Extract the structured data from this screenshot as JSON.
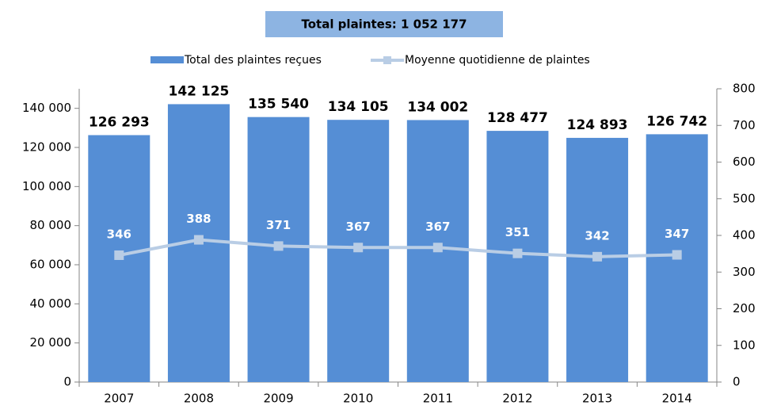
{
  "chart_data": {
    "type": "bar+line",
    "title": "Total plaintes:  1 052 177",
    "categories": [
      "2007",
      "2008",
      "2009",
      "2010",
      "2011",
      "2012",
      "2013",
      "2014"
    ],
    "series": [
      {
        "name": "Total des plaintes reçues",
        "type": "bar",
        "color": "#558ed5",
        "values": [
          126293,
          142125,
          135540,
          134105,
          134002,
          128477,
          124893,
          126742
        ],
        "value_labels": [
          "126 293",
          "142 125",
          "135 540",
          "134 105",
          "134 002",
          "128 477",
          "124 893",
          "126 742"
        ]
      },
      {
        "name": "Moyenne quotidienne de plaintes",
        "type": "line",
        "axis": "y2",
        "color": "#b9cde5",
        "values": [
          346,
          388,
          371,
          367,
          367,
          351,
          342,
          347
        ]
      }
    ],
    "ylim": [
      0,
      150000
    ],
    "yticks": [
      0,
      {
        "value": 20000,
        "label": "20 000"
      },
      {
        "value": 40000,
        "label": "40 000"
      },
      {
        "value": 60000,
        "label": "60 000"
      },
      {
        "value": 80000,
        "label": "80 000"
      },
      {
        "value": 100000,
        "label": "100 000"
      },
      {
        "value": 120000,
        "label": "120 000"
      },
      {
        "value": 140000,
        "label": "140 000"
      }
    ],
    "y2lim": [
      0,
      800
    ],
    "y2ticks": [
      0,
      100,
      200,
      300,
      400,
      500,
      600,
      700,
      800
    ],
    "grid": false,
    "legend": "top"
  }
}
